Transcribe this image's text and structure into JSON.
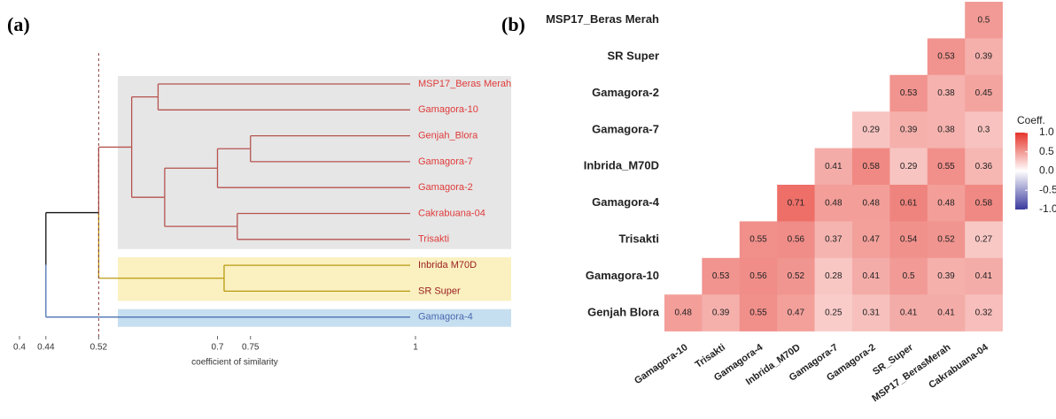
{
  "chart_data": [
    {
      "type": "dendrogram",
      "panel": "(a)",
      "xlabel": "coefficient of similarity",
      "xlim": [
        0.4,
        1
      ],
      "xticks": [
        0.4,
        0.44,
        0.52,
        0.7,
        0.75,
        1
      ],
      "cutoff": 0.52,
      "tree": {
        "value": 0.44,
        "color": "#111111",
        "children": [
          {
            "value": 0.52,
            "children": [
              {
                "value": 0.57,
                "color": "#b5534f",
                "box": "#e6e6e6",
                "label_color": "#e03a3a",
                "children": [
                  {
                    "value": 0.61,
                    "children": [
                      {
                        "label": "MSP17_Beras Merah"
                      },
                      {
                        "label": "Gamagora-10"
                      }
                    ]
                  },
                  {
                    "value": 0.62,
                    "children": [
                      {
                        "value": 0.7,
                        "children": [
                          {
                            "value": 0.75,
                            "children": [
                              {
                                "label": "Genjah_Blora"
                              },
                              {
                                "label": "Gamagora-7"
                              }
                            ]
                          },
                          {
                            "label": "Gamagora-2"
                          }
                        ]
                      },
                      {
                        "value": 0.73,
                        "children": [
                          {
                            "label": "Cakrabuana-04"
                          },
                          {
                            "label": "Trisakti"
                          }
                        ]
                      }
                    ]
                  }
                ]
              },
              {
                "value": 0.71,
                "color": "#b89a10",
                "box": "#faf0c0",
                "label_color": "#9a2020",
                "children": [
                  {
                    "label": "Inbrida M70D"
                  },
                  {
                    "label": "SR Super"
                  }
                ]
              }
            ]
          },
          {
            "label": "Gamagora-4",
            "color": "#4a72b0",
            "box": "#c6dff0",
            "label_color": "#4a68b0"
          }
        ]
      }
    },
    {
      "type": "heatmap",
      "panel": "(b)",
      "legend_title": "Coeff.",
      "rows": [
        "MSP17_Beras Merah",
        "SR Super",
        "Gamagora-2",
        "Gamagora-7",
        "Inbrida_M70D",
        "Gamagora-4",
        "Trisakti",
        "Gamagora-10",
        "Genjah Blora"
      ],
      "columns": [
        "Gamagora-10",
        "Trisakti",
        "Gamagora-4",
        "Inbrida_M70D",
        "Gamagora-7",
        "Gamagora-2",
        "SR_Super",
        "MSP17_BerasMerah",
        "Cakrabuana-04"
      ],
      "matrix": [
        [
          null,
          null,
          null,
          null,
          null,
          null,
          null,
          null,
          0.5
        ],
        [
          null,
          null,
          null,
          null,
          null,
          null,
          null,
          0.53,
          0.39
        ],
        [
          null,
          null,
          null,
          null,
          null,
          null,
          0.53,
          0.38,
          0.45
        ],
        [
          null,
          null,
          null,
          null,
          null,
          0.29,
          0.39,
          0.38,
          0.3
        ],
        [
          null,
          null,
          null,
          null,
          0.41,
          0.58,
          0.29,
          0.55,
          0.36
        ],
        [
          null,
          null,
          null,
          0.71,
          0.48,
          0.48,
          0.61,
          0.48,
          0.58
        ],
        [
          null,
          null,
          0.55,
          0.56,
          0.37,
          0.47,
          0.54,
          0.52,
          0.27
        ],
        [
          null,
          0.53,
          0.56,
          0.52,
          0.28,
          0.41,
          0.5,
          0.39,
          0.41
        ],
        [
          0.48,
          0.39,
          0.55,
          0.47,
          0.25,
          0.31,
          0.41,
          0.41,
          0.32
        ]
      ],
      "clim": [
        -1,
        1
      ],
      "colors": [
        "#3a3a9e",
        "#ffffff",
        "#e5342a"
      ],
      "cticks": [
        {
          "value": 1,
          "label": "1.0"
        },
        0.5,
        {
          "value": 0,
          "label": "0.0"
        },
        -0.5,
        {
          "value": -1,
          "label": "-1.0"
        }
      ]
    }
  ]
}
